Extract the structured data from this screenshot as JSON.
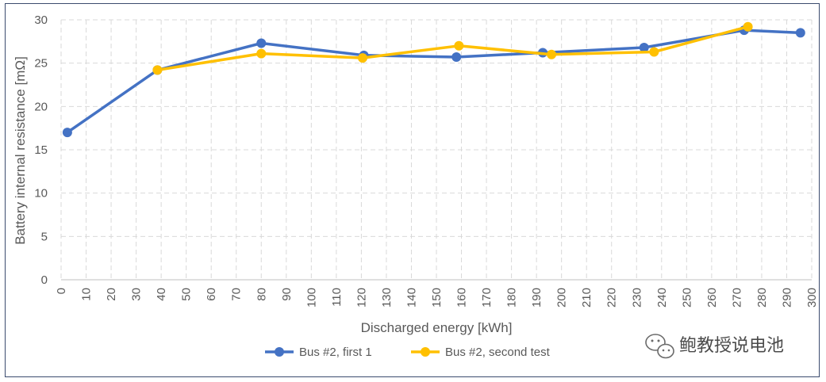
{
  "chart_data": {
    "type": "line",
    "title": "",
    "xlabel": "Discharged energy [kWh]",
    "ylabel": "Battery internal resistance [mΩ]",
    "xlim": [
      0,
      300
    ],
    "ylim": [
      0,
      30
    ],
    "x_ticks": [
      0,
      10,
      20,
      30,
      40,
      50,
      60,
      70,
      80,
      90,
      100,
      110,
      120,
      130,
      140,
      150,
      160,
      170,
      180,
      190,
      200,
      210,
      220,
      230,
      240,
      250,
      260,
      270,
      280,
      290,
      300
    ],
    "y_ticks": [
      0,
      5,
      10,
      15,
      20,
      25,
      30
    ],
    "grid": "dashed",
    "legend_position": "bottom",
    "series": [
      {
        "name": "Bus #2, first 1",
        "color": "#4472c4",
        "points": [
          [
            2.5,
            17.0
          ],
          [
            38.5,
            24.2
          ],
          [
            80,
            27.3
          ],
          [
            121,
            25.9
          ],
          [
            158,
            25.7
          ],
          [
            192.5,
            26.2
          ],
          [
            233,
            26.8
          ],
          [
            273,
            28.8
          ],
          [
            295.5,
            28.5
          ]
        ]
      },
      {
        "name": "Bus #2, second test",
        "color": "#ffc000",
        "points": [
          [
            38.5,
            24.2
          ],
          [
            80,
            26.1
          ],
          [
            120.5,
            25.6
          ],
          [
            159,
            27.0
          ],
          [
            196,
            26.0
          ],
          [
            237,
            26.3
          ],
          [
            274.5,
            29.2
          ]
        ]
      }
    ]
  },
  "watermark": {
    "text": "鲍教授说电池",
    "icon": "wechat-icon"
  }
}
